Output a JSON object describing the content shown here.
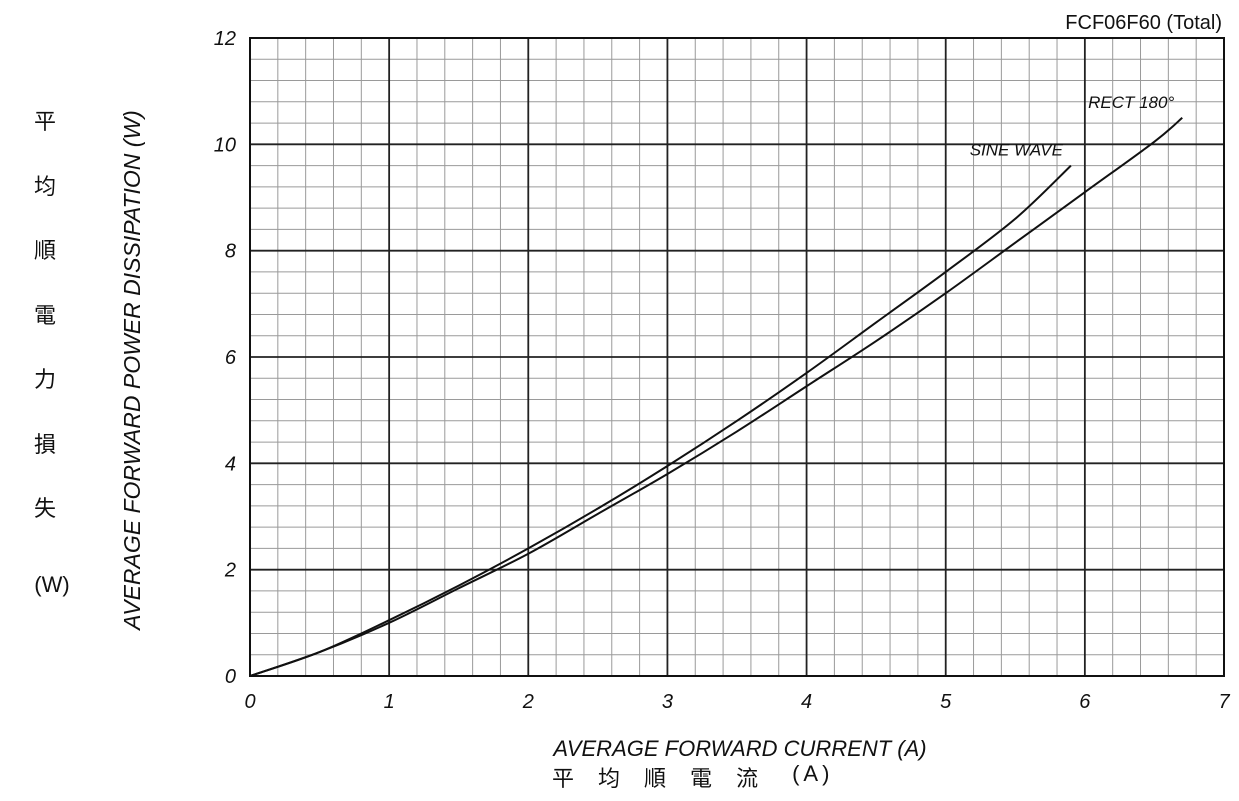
{
  "chart_data": {
    "type": "line",
    "subtitle": "FCF06F60 (Total)",
    "xlabel": "AVERAGE FORWARD CURRENT (A)",
    "xlabel_jp": [
      "平",
      "均",
      "順",
      "電",
      "流"
    ],
    "xlabel_jp_unit": "(A)",
    "ylabel": "AVERAGE FORWARD POWER DISSIPATION (W)",
    "ylabel_jp": [
      "平",
      "均",
      "順",
      "電",
      "力",
      "損",
      "失"
    ],
    "ylabel_jp_unit": "(W)",
    "xlim": [
      0,
      7
    ],
    "ylim": [
      0,
      12
    ],
    "xticks": [
      "0",
      "1",
      "2",
      "3",
      "4",
      "5",
      "6",
      "7"
    ],
    "yticks": [
      "0",
      "2",
      "4",
      "6",
      "8",
      "10",
      "12"
    ],
    "grid": true,
    "series": [
      {
        "name": "SINE WAVE",
        "x": [
          0,
          0.5,
          1.0,
          1.5,
          2.0,
          2.5,
          3.0,
          3.5,
          4.0,
          4.5,
          5.0,
          5.5,
          5.9
        ],
        "y": [
          0,
          0.45,
          1.05,
          1.7,
          2.4,
          3.15,
          3.95,
          4.8,
          5.7,
          6.65,
          7.6,
          8.6,
          9.6
        ]
      },
      {
        "name": "RECT 180°",
        "x": [
          0,
          0.5,
          1.0,
          1.5,
          2.0,
          2.5,
          3.0,
          3.5,
          4.0,
          4.5,
          5.0,
          5.5,
          6.0,
          6.5,
          6.7
        ],
        "y": [
          0,
          0.45,
          1.0,
          1.65,
          2.3,
          3.05,
          3.8,
          4.6,
          5.45,
          6.3,
          7.2,
          8.15,
          9.1,
          10.05,
          10.5
        ]
      }
    ]
  }
}
